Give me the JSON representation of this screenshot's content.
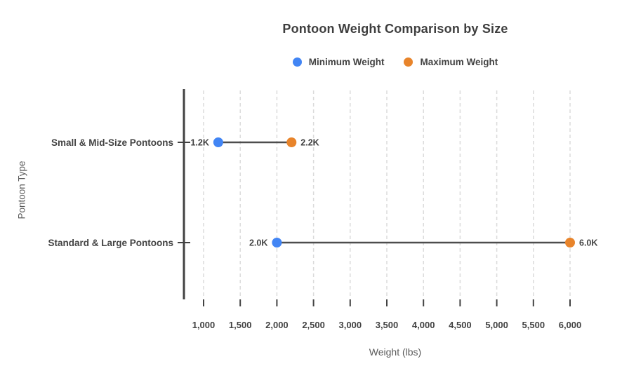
{
  "chart_data": {
    "type": "dumbbell",
    "title": "Pontoon Weight Comparison by Size",
    "xlabel": "Weight (lbs)",
    "ylabel": "Pontoon Type",
    "categories": [
      "Small & Mid-Size Pontoons",
      "Standard & Large Pontoons"
    ],
    "series": [
      {
        "name": "Minimum Weight",
        "color": "#4285F4",
        "values": [
          1200,
          2000
        ],
        "point_labels": [
          "1.2K",
          "2.0K"
        ]
      },
      {
        "name": "Maximum Weight",
        "color": "#E8842B",
        "values": [
          2200,
          6000
        ],
        "point_labels": [
          "2.2K",
          "6.0K"
        ]
      }
    ],
    "x_ticks": [
      {
        "value": 1000,
        "label": "1,000"
      },
      {
        "value": 1500,
        "label": "1,500"
      },
      {
        "value": 2000,
        "label": "2,000"
      },
      {
        "value": 2500,
        "label": "2,500"
      },
      {
        "value": 3000,
        "label": "3,000"
      },
      {
        "value": 3500,
        "label": "3,500"
      },
      {
        "value": 4000,
        "label": "4,000"
      },
      {
        "value": 4500,
        "label": "4,500"
      },
      {
        "value": 5000,
        "label": "5,000"
      },
      {
        "value": 5500,
        "label": "5,500"
      },
      {
        "value": 6000,
        "label": "6,000"
      }
    ],
    "xlim": [
      1000,
      6000
    ],
    "grid": "dashed-vertical",
    "legend_position": "top-center",
    "colors": {
      "connector": "#4D4D4D",
      "axis": "#424242",
      "grid": "#DBDBDB",
      "tick_text": "#424242",
      "axis_title_text": "#5A5A5A",
      "title_text": "#3E3E3E"
    }
  }
}
